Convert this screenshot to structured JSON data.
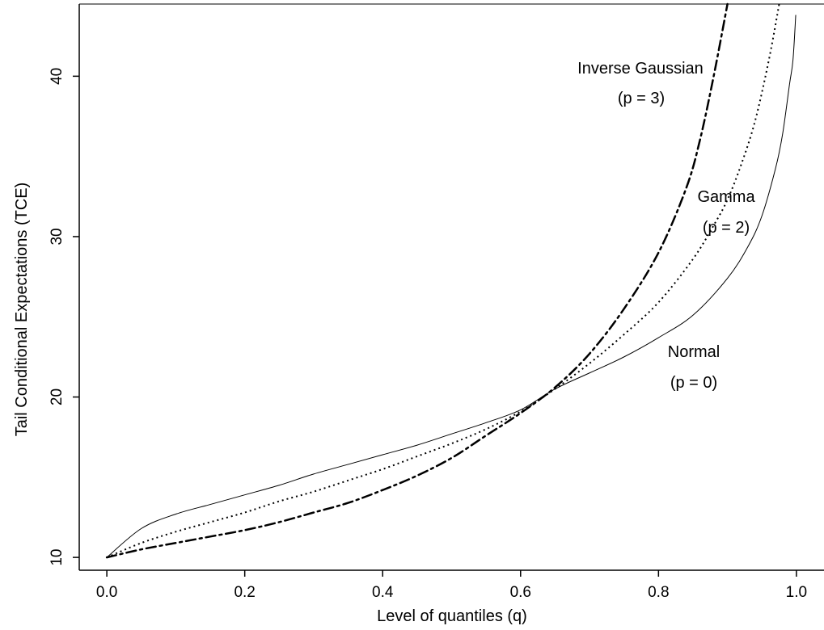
{
  "chart_data": {
    "type": "line",
    "title": "",
    "xlabel": "Level of quantiles (q)",
    "ylabel": "Tail Conditional Expectations (TCE)",
    "xlim": [
      -0.04,
      1.04
    ],
    "ylim": [
      9.2,
      44.5
    ],
    "xticks": [
      0.0,
      0.2,
      0.4,
      0.6,
      0.8,
      1.0
    ],
    "xtick_labels": [
      "0.0",
      "0.2",
      "0.4",
      "0.6",
      "0.8",
      "1.0"
    ],
    "yticks": [
      10,
      20,
      30,
      40
    ],
    "ytick_labels": [
      "10",
      "20",
      "30",
      "40"
    ],
    "grid": false,
    "series": [
      {
        "name": "Normal",
        "line_style": "solid",
        "line_width": 1,
        "color": "#000000",
        "x": [
          0.0,
          0.05,
          0.1,
          0.15,
          0.2,
          0.25,
          0.3,
          0.35,
          0.4,
          0.45,
          0.5,
          0.55,
          0.6,
          0.65,
          0.7,
          0.75,
          0.8,
          0.85,
          0.9,
          0.93,
          0.95,
          0.97,
          0.98,
          0.99,
          0.995,
          0.999
        ],
        "y": [
          10.0,
          11.8,
          12.7,
          13.3,
          13.9,
          14.5,
          15.2,
          15.8,
          16.4,
          17.0,
          17.7,
          18.4,
          19.2,
          20.5,
          21.5,
          22.5,
          23.7,
          25.1,
          27.4,
          29.4,
          31.3,
          34.3,
          36.4,
          39.5,
          41.0,
          43.8
        ]
      },
      {
        "name": "Gamma",
        "line_style": "dotted",
        "line_width": 2,
        "color": "#000000",
        "x": [
          0.0,
          0.05,
          0.1,
          0.15,
          0.2,
          0.25,
          0.3,
          0.35,
          0.4,
          0.45,
          0.5,
          0.55,
          0.6,
          0.65,
          0.7,
          0.75,
          0.8,
          0.85,
          0.88,
          0.9,
          0.92,
          0.94,
          0.96,
          0.975
        ],
        "y": [
          10.0,
          10.9,
          11.6,
          12.2,
          12.8,
          13.5,
          14.1,
          14.8,
          15.5,
          16.3,
          17.1,
          18.0,
          19.1,
          20.5,
          22.1,
          23.9,
          25.9,
          28.6,
          30.7,
          32.3,
          34.5,
          37.2,
          41.0,
          44.5
        ]
      },
      {
        "name": "Inverse Gaussian",
        "line_style": "dashdot",
        "line_width": 2.5,
        "color": "#000000",
        "x": [
          0.0,
          0.05,
          0.1,
          0.15,
          0.2,
          0.25,
          0.3,
          0.35,
          0.4,
          0.45,
          0.5,
          0.55,
          0.6,
          0.65,
          0.7,
          0.75,
          0.8,
          0.84,
          0.86,
          0.88,
          0.9
        ],
        "y": [
          10.0,
          10.5,
          10.9,
          11.3,
          11.7,
          12.2,
          12.8,
          13.4,
          14.2,
          15.1,
          16.2,
          17.6,
          19.0,
          20.6,
          22.7,
          25.5,
          29.0,
          33.0,
          36.0,
          40.0,
          44.5
        ]
      }
    ],
    "annotations": [
      {
        "line1": "Inverse Gaussian",
        "line2": "(p = 3)"
      },
      {
        "line1": "Gamma",
        "line2": "(p = 2)"
      },
      {
        "line1": "Normal",
        "line2": "(p = 0)"
      }
    ]
  }
}
